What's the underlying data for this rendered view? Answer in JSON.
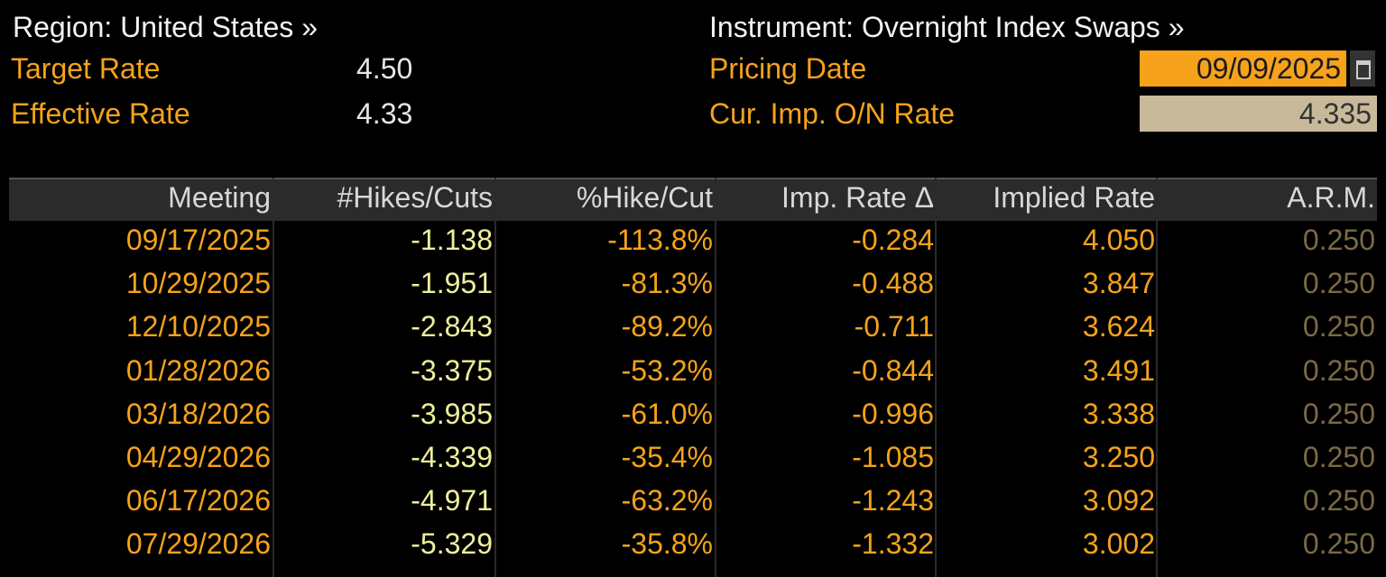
{
  "header": {
    "region": "Region: United States »",
    "instrument": "Instrument: Overnight Index Swaps »",
    "target_rate_label": "Target Rate",
    "target_rate": "4.50",
    "effective_rate_label": "Effective Rate",
    "effective_rate": "4.33",
    "pricing_date_label": "Pricing Date",
    "pricing_date": "09/09/2025",
    "on_rate_label": "Cur. Imp. O/N Rate",
    "on_rate": "4.335"
  },
  "table": {
    "columns": [
      "Meeting",
      "#Hikes/Cuts",
      "%Hike/Cut",
      "Imp. Rate Δ",
      "Implied Rate",
      "A.R.M."
    ],
    "rows": [
      [
        "09/17/2025",
        "-1.138",
        "-113.8%",
        "-0.284",
        "4.050",
        "0.250"
      ],
      [
        "10/29/2025",
        "-1.951",
        "-81.3%",
        "-0.488",
        "3.847",
        "0.250"
      ],
      [
        "12/10/2025",
        "-2.843",
        "-89.2%",
        "-0.711",
        "3.624",
        "0.250"
      ],
      [
        "01/28/2026",
        "-3.375",
        "-53.2%",
        "-0.844",
        "3.491",
        "0.250"
      ],
      [
        "03/18/2026",
        "-3.985",
        "-61.0%",
        "-0.996",
        "3.338",
        "0.250"
      ],
      [
        "04/29/2026",
        "-4.339",
        "-35.4%",
        "-1.085",
        "3.250",
        "0.250"
      ],
      [
        "06/17/2026",
        "-4.971",
        "-63.2%",
        "-1.243",
        "3.092",
        "0.250"
      ],
      [
        "07/29/2026",
        "-5.329",
        "-35.8%",
        "-1.332",
        "3.002",
        "0.250"
      ]
    ]
  }
}
